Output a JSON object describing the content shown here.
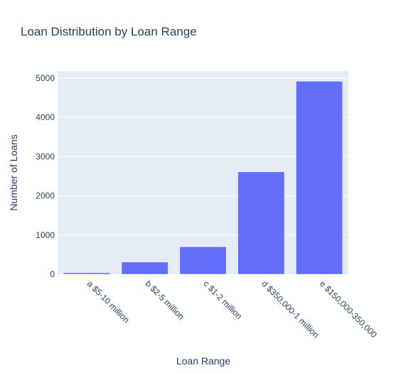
{
  "chart_data": {
    "type": "bar",
    "title": "Loan Distribution by Loan Range",
    "xlabel": "Loan Range",
    "ylabel": "Number of Loans",
    "categories": [
      "a $5-10 million",
      "b $2-5 million",
      "c $1-2 million",
      "d $350,000-1 million",
      "e $150,000-350,000"
    ],
    "values": [
      38,
      310,
      700,
      2610,
      4920
    ],
    "ylim": [
      0,
      5180
    ],
    "yticks": [
      0,
      1000,
      2000,
      3000,
      4000,
      5000
    ],
    "ytick_labels": [
      "0",
      "1000",
      "2000",
      "3000",
      "4000",
      "5000"
    ],
    "grid": true,
    "colors": {
      "bar": "#636efa",
      "plot_bg": "#e5ecf6",
      "grid": "#ffffff",
      "text": "#2a3f5f"
    }
  }
}
